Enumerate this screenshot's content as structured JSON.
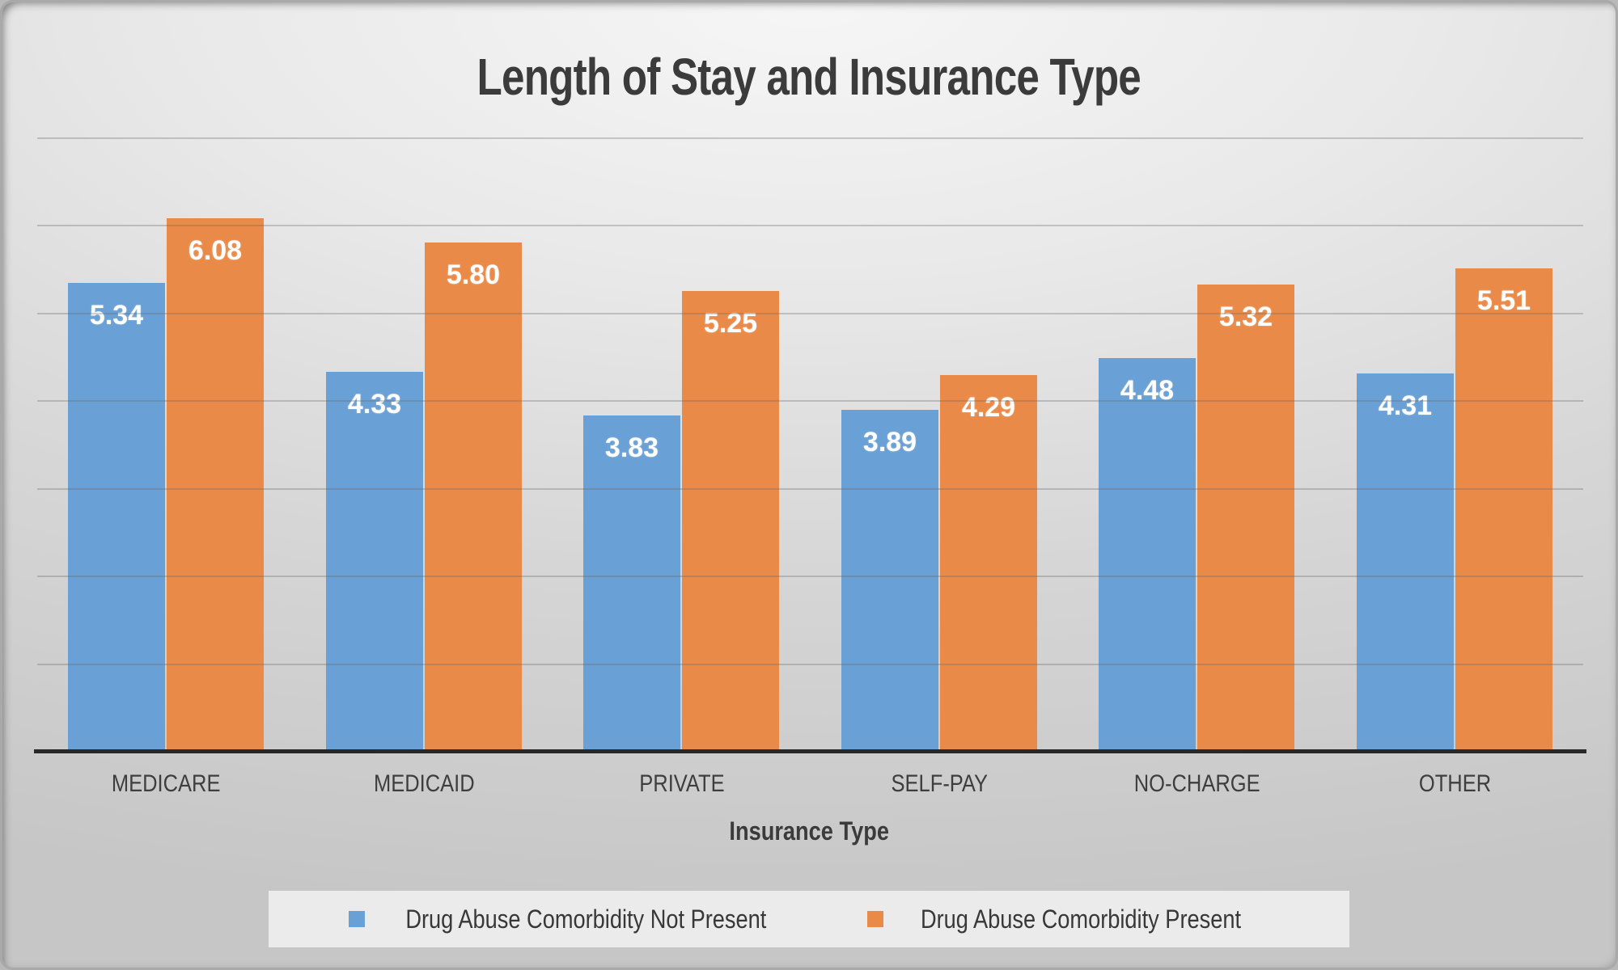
{
  "chart_data": {
    "type": "bar",
    "title": "Length of Stay and Insurance Type",
    "xlabel": "Insurance Type",
    "ylabel": "",
    "categories": [
      "MEDICARE",
      "MEDICAID",
      "PRIVATE",
      "SELF-PAY",
      "NO-CHARGE",
      "OTHER"
    ],
    "series": [
      {
        "name": "Drug Abuse Comorbidity Not Present",
        "color": "#69A0D5",
        "values": [
          5.34,
          4.33,
          3.83,
          3.89,
          4.48,
          4.31
        ]
      },
      {
        "name": "Drug Abuse Comorbidity Present",
        "color": "#EA8A48",
        "values": [
          6.08,
          5.8,
          5.25,
          4.29,
          5.32,
          5.51
        ]
      }
    ],
    "ylim": [
      0,
      7
    ],
    "gridline_interval": 1,
    "grid": "horizontal-only",
    "y_axis_tick_labels_visible": false,
    "value_label_format": "0.00",
    "value_label_position": "inside-top-white-bold",
    "legend_position": "bottom"
  },
  "colors": {
    "series_blue": "#69A0D5",
    "series_orange": "#EA8A48",
    "title_text": "#3B3B3B",
    "axis_label_text": "#3E3E3E",
    "gridline": "#696969",
    "x_axis_line": "#282828",
    "legend_background": "#EBEBEB",
    "background_light": "#F6F6F6",
    "background_dark": "#C6C6C6"
  }
}
